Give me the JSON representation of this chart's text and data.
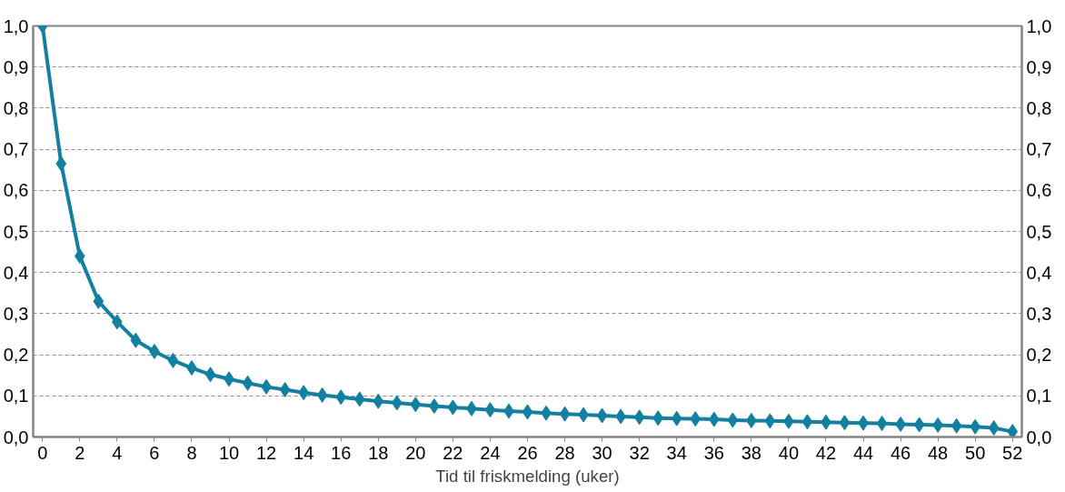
{
  "chart_data": {
    "type": "line",
    "xlabel": "Tid til friskmelding (uker)",
    "x": [
      0,
      1,
      2,
      3,
      4,
      5,
      6,
      7,
      8,
      9,
      10,
      11,
      12,
      13,
      14,
      15,
      16,
      17,
      18,
      19,
      20,
      21,
      22,
      23,
      24,
      25,
      26,
      27,
      28,
      29,
      30,
      31,
      32,
      33,
      34,
      35,
      36,
      37,
      38,
      39,
      40,
      41,
      42,
      43,
      44,
      45,
      46,
      47,
      48,
      49,
      50,
      51,
      52
    ],
    "series": [
      {
        "color": "#1380a1",
        "values": [
          1.0,
          0.665,
          0.44,
          0.33,
          0.28,
          0.235,
          0.208,
          0.186,
          0.168,
          0.152,
          0.141,
          0.131,
          0.122,
          0.115,
          0.108,
          0.102,
          0.097,
          0.092,
          0.087,
          0.083,
          0.079,
          0.075,
          0.072,
          0.069,
          0.066,
          0.063,
          0.061,
          0.058,
          0.056,
          0.054,
          0.052,
          0.05,
          0.048,
          0.046,
          0.045,
          0.044,
          0.043,
          0.041,
          0.04,
          0.039,
          0.038,
          0.037,
          0.036,
          0.035,
          0.034,
          0.033,
          0.031,
          0.03,
          0.029,
          0.027,
          0.025,
          0.022,
          0.013
        ]
      }
    ],
    "xlim": [
      -0.5,
      52.5
    ],
    "xticks": [
      0,
      2,
      4,
      6,
      8,
      10,
      12,
      14,
      16,
      18,
      20,
      22,
      24,
      26,
      28,
      30,
      32,
      34,
      36,
      38,
      40,
      42,
      44,
      46,
      48,
      50,
      52
    ],
    "ylim": [
      0,
      1
    ],
    "yticks": [
      {
        "value": 0,
        "label": "0,0"
      },
      {
        "value": 0.1,
        "label": "0,1"
      },
      {
        "value": 0.2,
        "label": "0,2"
      },
      {
        "value": 0.3,
        "label": "0,3"
      },
      {
        "value": 0.4,
        "label": "0,4"
      },
      {
        "value": 0.5,
        "label": "0,5"
      },
      {
        "value": 0.6,
        "label": "0,6"
      },
      {
        "value": 0.7,
        "label": "0,7"
      },
      {
        "value": 0.8,
        "label": "0,8"
      },
      {
        "value": 0.9,
        "label": "0,9"
      },
      {
        "value": 1,
        "label": "1,0"
      }
    ],
    "y2lim": [
      0,
      1
    ],
    "y2ticks": [
      {
        "value": 0,
        "label": "0,0"
      },
      {
        "value": 0.1,
        "label": "0,1"
      },
      {
        "value": 0.2,
        "label": "0,2"
      },
      {
        "value": 0.3,
        "label": "0,3"
      },
      {
        "value": 0.4,
        "label": "0,4"
      },
      {
        "value": 0.5,
        "label": "0,5"
      },
      {
        "value": 0.6,
        "label": "0,6"
      },
      {
        "value": 0.7,
        "label": "0,7"
      },
      {
        "value": 0.8,
        "label": "0,8"
      },
      {
        "value": 0.9,
        "label": "0,9"
      },
      {
        "value": 1,
        "label": "1,0"
      }
    ],
    "grid": "y",
    "marker": "diamond",
    "line_style": "solid"
  }
}
